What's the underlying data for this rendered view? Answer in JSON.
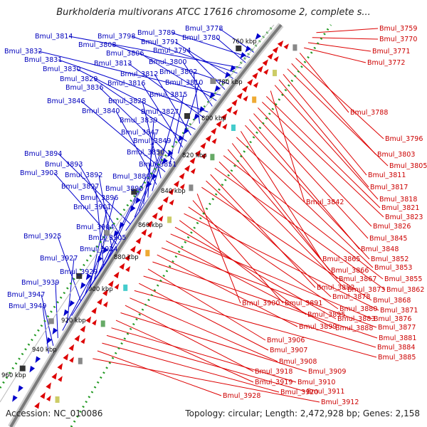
{
  "title": "Burkholderia multivorans ATCC 17616 chromosome 2, complete s...",
  "accession": "Accession: NC_010086",
  "topology": "Topology: circular; Length: 2,472,928 bp; Genes: 2,158",
  "colors": {
    "blue": "#0000cc",
    "red": "#dd0000",
    "backbone": "#888888",
    "dots": "#228822"
  },
  "ticks": [
    "760 kbp",
    "780 kbp",
    "800 kbp",
    "820 kbp",
    "840 kbp",
    "860 kbp",
    "880 kbp",
    "900 kbp",
    "920 kbp",
    "940 kbp",
    "960 kbp"
  ],
  "blue_labels": [
    "Bmul_3778",
    "Bmul_3789",
    "Bmul_3780",
    "Bmul_3814",
    "Bmul_3798",
    "Bmul_3791",
    "Bmul_3808",
    "Bmul_3794",
    "Bmul_3832",
    "Bmul_3806",
    "Bmul_3800",
    "Bmul_3831",
    "Bmul_3813",
    "Bmul_3802",
    "Bmul_3830",
    "Bmul_3812",
    "Bmul_3829",
    "Bmul_3816",
    "Bmul_3810",
    "Bmul_3836",
    "Bmul_3815",
    "Bmul_3846",
    "Bmul_3828",
    "Bmul_3840",
    "Bmul_3827",
    "Bmul_3839",
    "Bmul_3847",
    "Bmul_3849",
    "Bmul_3850",
    "Bmul_3894",
    "Bmul_3851",
    "Bmul_3893",
    "Bmul_3903",
    "Bmul_3892",
    "Bmul_3889",
    "Bmul_3897",
    "Bmul_3890",
    "Bmul_3896",
    "Bmul_3901",
    "Bmul_3904",
    "Bmul_3925",
    "Bmul_3905",
    "Bmul_3924",
    "Bmul_3927",
    "Bmul_3929",
    "Bmul_3939",
    "Bmul_3947",
    "Bmul_3949"
  ],
  "red_labels": [
    "Bmul_3759",
    "Bmul_3770",
    "Bmul_3771",
    "Bmul_3772",
    "Bmul_3788",
    "Bmul_3796",
    "Bmul_3803",
    "Bmul_3805",
    "Bmul_3811",
    "Bmul_3817",
    "Bmul_3818",
    "Bmul_3842",
    "Bmul_3821",
    "Bmul_3823",
    "Bmul_3826",
    "Bmul_3845",
    "Bmul_3848",
    "Bmul_3852",
    "Bmul_3865",
    "Bmul_3853",
    "Bmul_3866",
    "Bmul_3867",
    "Bmul_3855",
    "Bmul_3873",
    "Bmul_3862",
    "Bmul_3882",
    "Bmul_3878",
    "Bmul_3868",
    "Bmul_3900",
    "Bmul_3891",
    "Bmul_3880",
    "Bmul_3871",
    "Bmul_3895",
    "Bmul_3883",
    "Bmul_3876",
    "Bmul_3888",
    "Bmul_3877",
    "Bmul_3899",
    "Bmul_3881",
    "Bmul_3906",
    "Bmul_3884",
    "Bmul_3907",
    "Bmul_3885",
    "Bmul_3908",
    "Bmul_3918",
    "Bmul_3909",
    "Bmul_3919",
    "Bmul_3910",
    "Bmul_3911",
    "Bmul_3920",
    "Bmul_3928",
    "Bmul_3912"
  ]
}
